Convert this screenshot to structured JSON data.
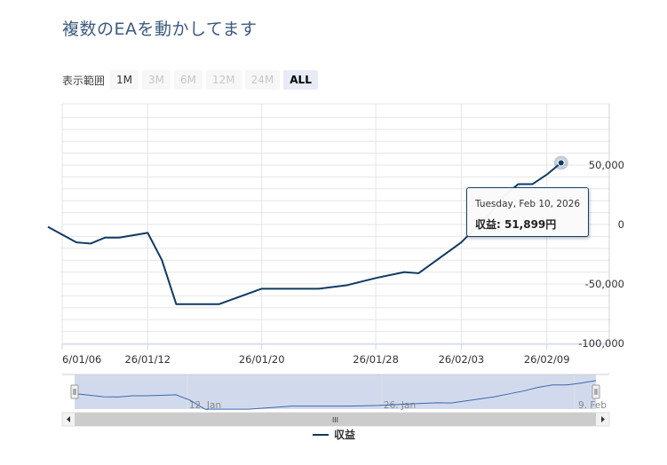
{
  "page": {
    "title": "複数のEAを動かしてます"
  },
  "range_selector": {
    "label": "表示範囲",
    "buttons": [
      {
        "label": "1M",
        "state": "enabled"
      },
      {
        "label": "3M",
        "state": "disabled"
      },
      {
        "label": "6M",
        "state": "disabled"
      },
      {
        "label": "12M",
        "state": "disabled"
      },
      {
        "label": "24M",
        "state": "disabled"
      },
      {
        "label": "ALL",
        "state": "active"
      }
    ]
  },
  "chart_data": {
    "type": "line",
    "series": [
      {
        "name": "収益",
        "color": "#0f3a63",
        "points": [
          [
            "2026-01-05",
            -2000
          ],
          [
            "2026-01-07",
            -15000
          ],
          [
            "2026-01-08",
            -16000
          ],
          [
            "2026-01-09",
            -11000
          ],
          [
            "2026-01-10",
            -11000
          ],
          [
            "2026-01-12",
            -7000
          ],
          [
            "2026-01-13",
            -30000
          ],
          [
            "2026-01-14",
            -67000
          ],
          [
            "2026-01-16",
            -67000
          ],
          [
            "2026-01-17",
            -67000
          ],
          [
            "2026-01-20",
            -54000
          ],
          [
            "2026-01-22",
            -54000
          ],
          [
            "2026-01-24",
            -54000
          ],
          [
            "2026-01-26",
            -51000
          ],
          [
            "2026-01-28",
            -45000
          ],
          [
            "2026-01-30",
            -40000
          ],
          [
            "2026-01-31",
            -41000
          ],
          [
            "2026-02-03",
            -15000
          ],
          [
            "2026-02-04",
            -3000
          ],
          [
            "2026-02-05",
            9000
          ],
          [
            "2026-02-06",
            24000
          ],
          [
            "2026-02-07",
            34000
          ],
          [
            "2026-02-08",
            34000
          ],
          [
            "2026-02-09",
            42000
          ],
          [
            "2026-02-10",
            51899
          ]
        ]
      }
    ],
    "x_ticks": [
      "6/01/06",
      "26/01/12",
      "26/01/20",
      "26/01/28",
      "26/02/03",
      "26/02/09"
    ],
    "y_ticks": [
      "50,000",
      "0",
      "-50,000",
      "-100,000"
    ],
    "ylim": [
      -100000,
      100000
    ],
    "grid": true,
    "legend": "bottom-center",
    "tooltip": {
      "date": "Tuesday, Feb 10, 2026",
      "label": "収益: 51,899円"
    },
    "navigator": {
      "labels": [
        "12. Jan",
        "26. Jan",
        "9. Feb"
      ],
      "scroll_center_glyph": "III"
    }
  }
}
